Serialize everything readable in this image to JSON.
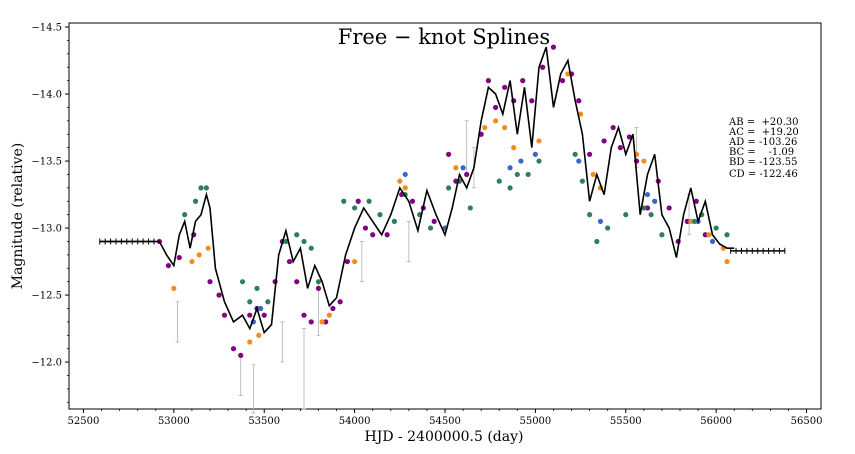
{
  "chart_data": {
    "type": "scatter",
    "title": "Free − knot Splines",
    "xlabel": "HJD - 2400000.5 (day)",
    "ylabel": "Magnitude (relative)",
    "xlim": [
      52420,
      56580
    ],
    "ylim": [
      -11.65,
      -14.53
    ],
    "y_inverted": true,
    "grid": false,
    "x_ticks": [
      52500,
      53000,
      53500,
      54000,
      54500,
      55000,
      55500,
      56000,
      56500
    ],
    "y_ticks": [
      -14.5,
      -14.0,
      -13.5,
      -13.0,
      -12.5,
      -12.0
    ],
    "x_tick_labels": [
      "52500",
      "53000",
      "53500",
      "54000",
      "54500",
      "55000",
      "55500",
      "56000",
      "56500"
    ],
    "y_tick_labels": [
      "−14.5",
      "−14.0",
      "−13.5",
      "−13.0",
      "−12.5",
      "−12.0"
    ],
    "delays": [
      "AB =  +20.30",
      "AC =  +19.20",
      "AD = -103.26",
      "BC =    -1.09",
      "BD = -123.55",
      "CD = -122.46"
    ],
    "colors": {
      "purple": "#800080",
      "orange": "#f28c1e",
      "green": "#2e7d5b",
      "blue": "#3a67c2",
      "spline": "#000000",
      "errorbar": "#b0b0b0"
    },
    "spline_knots": [
      [
        52590,
        -12.9
      ],
      [
        52920,
        -12.9
      ],
      [
        52960,
        -12.8
      ],
      [
        53000,
        -12.72
      ],
      [
        53030,
        -12.95
      ],
      [
        53060,
        -13.05
      ],
      [
        53090,
        -12.85
      ],
      [
        53120,
        -13.05
      ],
      [
        53150,
        -13.1
      ],
      [
        53180,
        -13.25
      ],
      [
        53200,
        -13.15
      ],
      [
        53230,
        -12.7
      ],
      [
        53280,
        -12.45
      ],
      [
        53330,
        -12.3
      ],
      [
        53380,
        -12.35
      ],
      [
        53420,
        -12.25
      ],
      [
        53460,
        -12.4
      ],
      [
        53500,
        -12.22
      ],
      [
        53540,
        -12.28
      ],
      [
        53580,
        -12.8
      ],
      [
        53620,
        -12.98
      ],
      [
        53660,
        -12.75
      ],
      [
        53700,
        -12.85
      ],
      [
        53740,
        -12.55
      ],
      [
        53780,
        -12.72
      ],
      [
        53820,
        -12.6
      ],
      [
        53860,
        -12.42
      ],
      [
        53900,
        -12.48
      ],
      [
        53950,
        -12.8
      ],
      [
        54000,
        -13.0
      ],
      [
        54050,
        -13.15
      ],
      [
        54100,
        -13.05
      ],
      [
        54150,
        -12.95
      ],
      [
        54200,
        -13.1
      ],
      [
        54250,
        -13.3
      ],
      [
        54300,
        -13.2
      ],
      [
        54350,
        -12.98
      ],
      [
        54400,
        -13.28
      ],
      [
        54450,
        -13.1
      ],
      [
        54500,
        -12.95
      ],
      [
        54540,
        -13.15
      ],
      [
        54580,
        -13.4
      ],
      [
        54620,
        -13.3
      ],
      [
        54660,
        -13.45
      ],
      [
        54700,
        -13.8
      ],
      [
        54740,
        -14.05
      ],
      [
        54780,
        -14.0
      ],
      [
        54820,
        -13.85
      ],
      [
        54860,
        -14.1
      ],
      [
        54900,
        -13.7
      ],
      [
        54940,
        -14.05
      ],
      [
        54980,
        -13.6
      ],
      [
        55020,
        -14.2
      ],
      [
        55060,
        -14.35
      ],
      [
        55100,
        -13.9
      ],
      [
        55140,
        -14.15
      ],
      [
        55180,
        -14.25
      ],
      [
        55220,
        -13.95
      ],
      [
        55260,
        -13.7
      ],
      [
        55300,
        -13.2
      ],
      [
        55340,
        -13.4
      ],
      [
        55380,
        -13.25
      ],
      [
        55420,
        -13.6
      ],
      [
        55460,
        -13.75
      ],
      [
        55500,
        -13.55
      ],
      [
        55540,
        -13.7
      ],
      [
        55580,
        -13.1
      ],
      [
        55620,
        -13.4
      ],
      [
        55660,
        -13.55
      ],
      [
        55700,
        -13.1
      ],
      [
        55740,
        -13.0
      ],
      [
        55780,
        -12.78
      ],
      [
        55820,
        -13.1
      ],
      [
        55860,
        -13.3
      ],
      [
        55900,
        -13.05
      ],
      [
        55940,
        -13.2
      ],
      [
        55980,
        -12.95
      ],
      [
        56020,
        -12.88
      ],
      [
        56060,
        -12.85
      ],
      [
        56100,
        -12.85
      ]
    ],
    "series": [
      {
        "color": "purple",
        "x": [
          52920,
          52970,
          53030,
          53110,
          53200,
          53250,
          53280,
          53330,
          53370,
          53420,
          53460,
          53500,
          53560,
          53600,
          53640,
          53680,
          53720,
          53760,
          53800,
          53840,
          53880,
          53920,
          53960,
          54020,
          54060,
          54100,
          54180,
          54260,
          54320,
          54380,
          54440,
          54520,
          54560,
          54620,
          54700,
          54740,
          54780,
          54830,
          54880,
          54930,
          54980,
          55040,
          55100,
          55150,
          55200,
          55240,
          55300,
          55380,
          55430,
          55470,
          55520,
          55560,
          55620,
          55680,
          55740,
          55790,
          55840,
          55890,
          55940
        ],
        "y": [
          -12.9,
          -12.72,
          -12.78,
          -12.95,
          -12.6,
          -12.5,
          -12.35,
          -12.1,
          -12.05,
          -12.35,
          -12.4,
          -12.35,
          -12.6,
          -12.9,
          -12.75,
          -12.6,
          -12.35,
          -12.3,
          -12.55,
          -12.3,
          -12.4,
          -12.45,
          -12.75,
          -13.2,
          -13.0,
          -12.95,
          -12.95,
          -13.25,
          -13.2,
          -13.15,
          -13.05,
          -13.55,
          -13.35,
          -13.4,
          -13.7,
          -14.1,
          -13.9,
          -14.05,
          -13.95,
          -14.1,
          -13.95,
          -14.2,
          -14.35,
          -14.1,
          -14.15,
          -13.95,
          -13.55,
          -13.65,
          -13.75,
          -13.6,
          -13.68,
          -13.5,
          -13.15,
          -13.35,
          -13.15,
          -12.9,
          -13.05,
          -13.2,
          -12.95
        ]
      },
      {
        "color": "orange",
        "x": [
          53000,
          53100,
          53140,
          53190,
          53420,
          53470,
          53820,
          53860,
          54000,
          54250,
          54280,
          54560,
          54720,
          54780,
          54830,
          54880,
          55020,
          55180,
          55250,
          55320,
          55360,
          55560,
          55600,
          55860,
          55960,
          56040,
          56060
        ],
        "y": [
          -12.55,
          -12.75,
          -12.8,
          -12.85,
          -12.15,
          -12.2,
          -12.3,
          -12.35,
          -12.75,
          -13.35,
          -13.3,
          -13.45,
          -13.75,
          -13.8,
          -13.75,
          -13.6,
          -13.65,
          -14.15,
          -13.85,
          -13.4,
          -13.3,
          -13.55,
          -13.5,
          -13.05,
          -12.95,
          -12.85,
          -12.75
        ]
      },
      {
        "color": "green",
        "x": [
          53060,
          53120,
          53150,
          53180,
          53380,
          53420,
          53460,
          53520,
          53620,
          53680,
          53720,
          53760,
          53800,
          53940,
          54000,
          54080,
          54140,
          54220,
          54280,
          54360,
          54420,
          54520,
          54580,
          54640,
          54800,
          54860,
          54900,
          54960,
          55020,
          55220,
          55260,
          55300,
          55340,
          55400,
          55500,
          55600,
          55640,
          55700,
          55880,
          55920,
          56000,
          56060
        ],
        "y": [
          -13.1,
          -13.2,
          -13.3,
          -13.3,
          -12.6,
          -12.45,
          -12.55,
          -12.45,
          -12.9,
          -12.95,
          -12.9,
          -12.85,
          -12.6,
          -13.2,
          -13.15,
          -13.2,
          -13.1,
          -13.05,
          -13.25,
          -13.1,
          -13.0,
          -13.3,
          -13.35,
          -13.15,
          -13.35,
          -13.3,
          -13.4,
          -13.4,
          -13.5,
          -13.55,
          -13.35,
          -13.1,
          -12.9,
          -13.0,
          -13.1,
          -13.15,
          -13.1,
          -12.95,
          -13.05,
          -13.1,
          -13.0,
          -12.95
        ]
      },
      {
        "color": "blue",
        "x": [
          53440,
          53480,
          54280,
          54500,
          54600,
          54860,
          54920,
          55000,
          55240,
          55360,
          55620,
          55660,
          55900,
          55980
        ],
        "y": [
          -12.3,
          -12.4,
          -13.4,
          -13.0,
          -13.45,
          -13.45,
          -13.5,
          -13.55,
          -13.5,
          -13.05,
          -13.25,
          -13.2,
          -13.05,
          -12.9
        ]
      }
    ],
    "error_points": [
      {
        "x": 53020,
        "y": -12.3,
        "e": 0.15
      },
      {
        "x": 53370,
        "y": -11.9,
        "e": 0.15
      },
      {
        "x": 53440,
        "y": -11.8,
        "e": 0.18
      },
      {
        "x": 53600,
        "y": -12.15,
        "e": 0.15
      },
      {
        "x": 53720,
        "y": -11.95,
        "e": 0.3
      },
      {
        "x": 53800,
        "y": -12.4,
        "e": 0.2
      },
      {
        "x": 54040,
        "y": -12.75,
        "e": 0.15
      },
      {
        "x": 54300,
        "y": -12.9,
        "e": 0.15
      },
      {
        "x": 54620,
        "y": -13.6,
        "e": 0.2
      },
      {
        "x": 54660,
        "y": -13.45,
        "e": 0.15
      },
      {
        "x": 55560,
        "y": -13.6,
        "e": 0.15
      },
      {
        "x": 55850,
        "y": -13.1,
        "e": 0.15
      }
    ],
    "flat_tails": [
      {
        "color": "spline",
        "x_start": 52590,
        "x_end": 52900,
        "y": -12.9
      },
      {
        "color": "spline",
        "x_start": 56080,
        "x_end": 56380,
        "y": -12.83
      }
    ]
  }
}
